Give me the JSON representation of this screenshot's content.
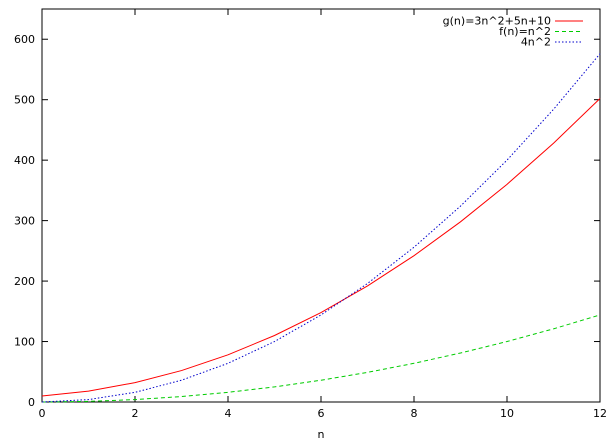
{
  "chart_data": {
    "type": "line",
    "title": "",
    "xlabel": "n",
    "ylabel": "",
    "xlim": [
      0,
      12
    ],
    "ylim": [
      0,
      650
    ],
    "xticks": [
      0,
      2,
      4,
      6,
      8,
      10,
      12
    ],
    "yticks": [
      0,
      100,
      200,
      300,
      400,
      500,
      600
    ],
    "grid": false,
    "legend_position": "top-right",
    "series": [
      {
        "name": "g(n)=3n^2+5n+10",
        "color": "#ff0000",
        "dash": "solid",
        "x": [
          0,
          1,
          2,
          3,
          4,
          5,
          6,
          7,
          8,
          9,
          10,
          11,
          12
        ],
        "y": [
          10,
          18,
          32,
          52,
          78,
          110,
          148,
          192,
          242,
          298,
          360,
          428,
          502
        ]
      },
      {
        "name": "f(n)=n^2",
        "color": "#00cc00",
        "dash": "dashed",
        "x": [
          0,
          1,
          2,
          3,
          4,
          5,
          6,
          7,
          8,
          9,
          10,
          11,
          12
        ],
        "y": [
          0,
          1,
          4,
          9,
          16,
          25,
          36,
          49,
          64,
          81,
          100,
          121,
          144
        ]
      },
      {
        "name": "4n^2",
        "color": "#0000cc",
        "dash": "dotted",
        "x": [
          0,
          1,
          2,
          3,
          4,
          5,
          6,
          7,
          8,
          9,
          10,
          11,
          12
        ],
        "y": [
          0,
          4,
          16,
          36,
          64,
          100,
          144,
          196,
          256,
          324,
          400,
          484,
          576
        ]
      }
    ]
  }
}
